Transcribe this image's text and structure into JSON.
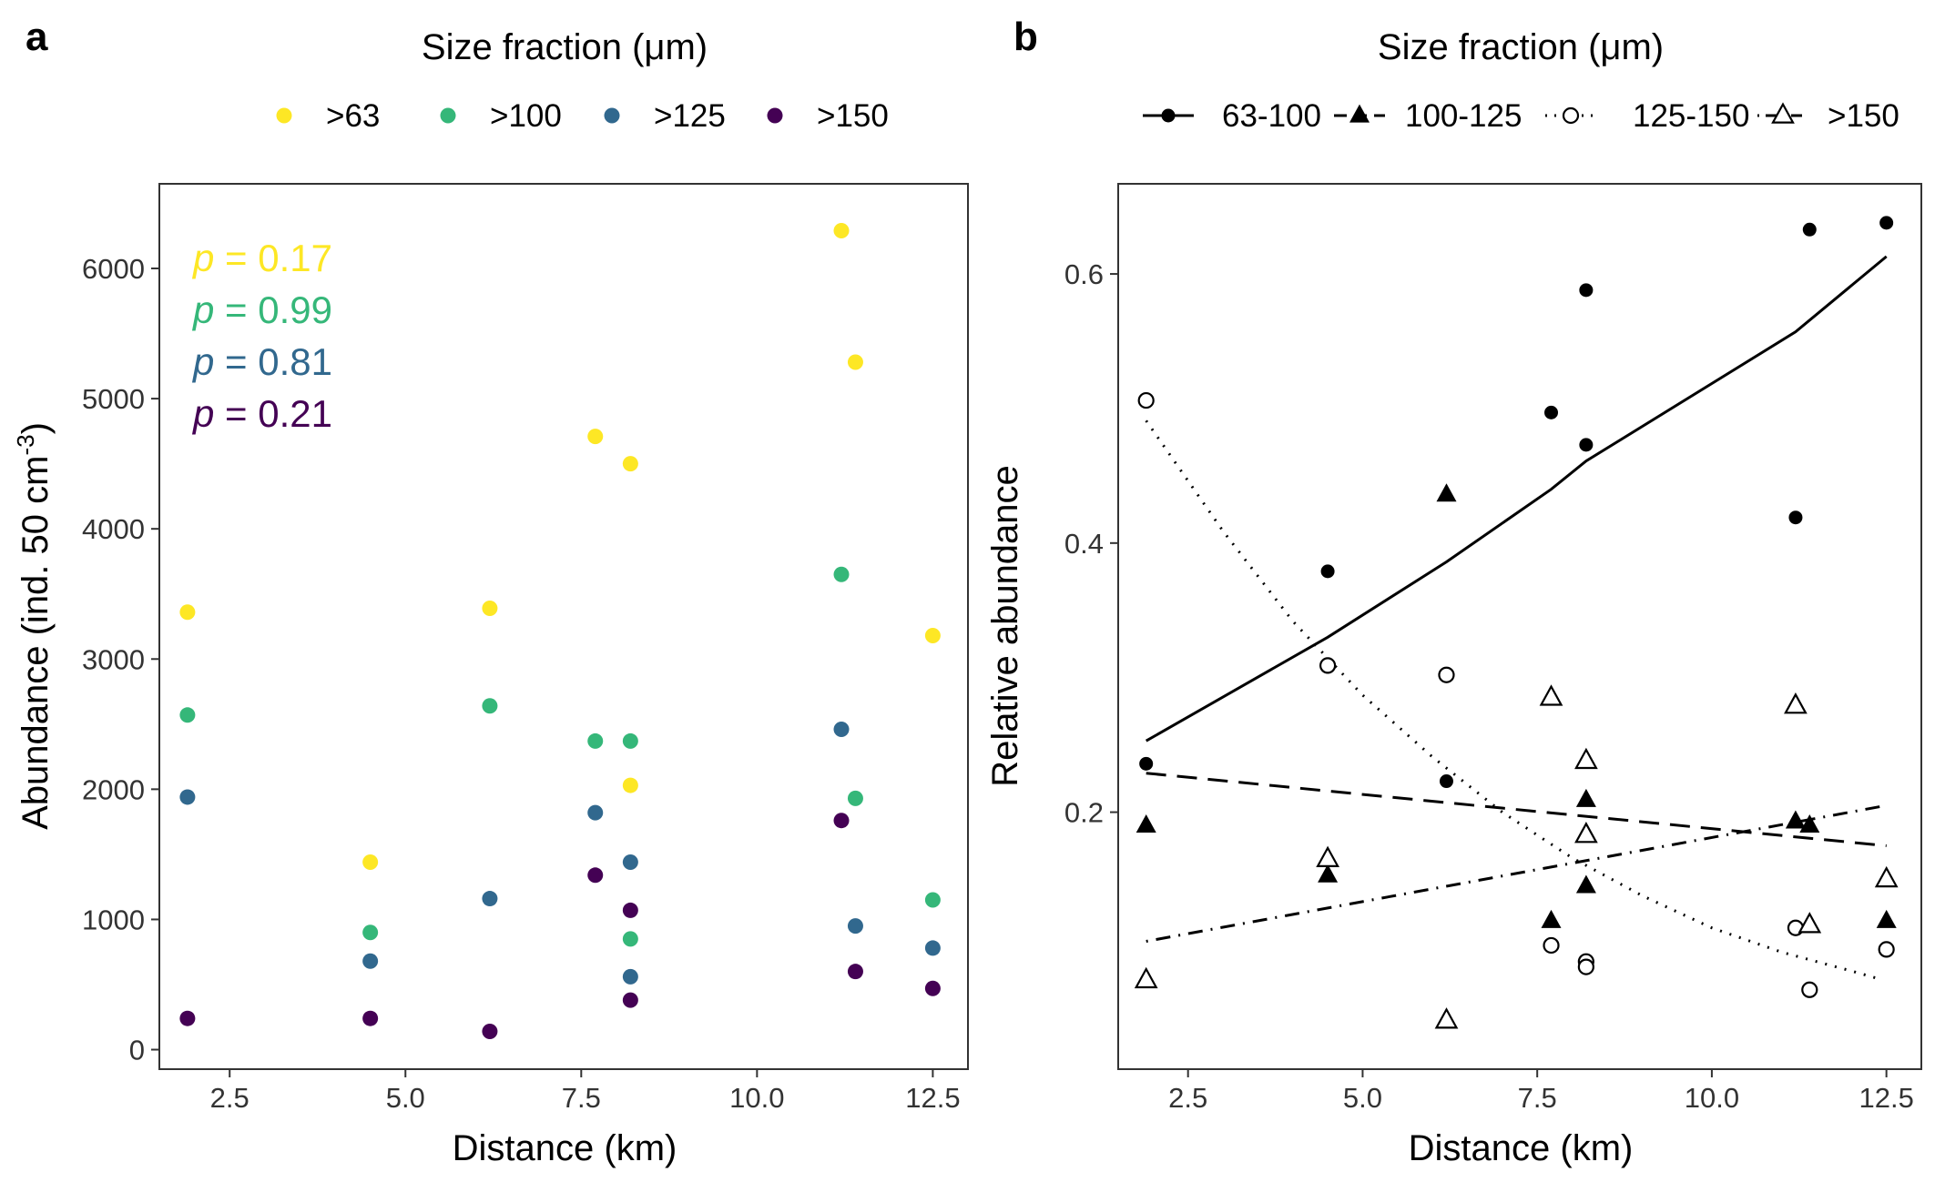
{
  "panels": {
    "a": {
      "tag": "a",
      "legend_title": "Size fraction (μm)"
    },
    "b": {
      "tag": "b",
      "legend_title": "Size fraction (μm)"
    }
  },
  "chart_data": [
    {
      "id": "a",
      "type": "scatter",
      "xlabel": "Distance (km)",
      "ylabel": "Abundance (ind. 50 cm",
      "ylabel_sup": "-3",
      "ylabel_end": ")",
      "xlim": [
        1.5,
        13.0
      ],
      "ylim": [
        -150,
        6650
      ],
      "xticks": [
        2.5,
        5.0,
        7.5,
        10.0,
        12.5
      ],
      "xtick_labels": [
        "2.5",
        "5.0",
        "7.5",
        "10.0",
        "12.5"
      ],
      "yticks": [
        0,
        1000,
        2000,
        3000,
        4000,
        5000,
        6000
      ],
      "ytick_labels": [
        "0",
        "1000",
        "2000",
        "3000",
        "4000",
        "5000",
        "6000"
      ],
      "legend_position": "top",
      "series": [
        {
          "name": ">63",
          "color": "#FDE725",
          "x": [
            1.9,
            4.5,
            6.2,
            7.7,
            8.2,
            8.2,
            11.2,
            11.4,
            12.5
          ],
          "y": [
            3360,
            1440,
            3390,
            4710,
            4500,
            2030,
            6290,
            5280,
            3180
          ]
        },
        {
          "name": ">100",
          "color": "#35B779",
          "x": [
            1.9,
            4.5,
            6.2,
            7.7,
            8.2,
            8.2,
            11.2,
            11.4,
            12.5
          ],
          "y": [
            2570,
            900,
            2640,
            2370,
            2370,
            850,
            3650,
            1930,
            1150
          ]
        },
        {
          "name": ">125",
          "color": "#31688E",
          "x": [
            1.9,
            4.5,
            6.2,
            7.7,
            8.2,
            8.2,
            11.2,
            11.4,
            12.5
          ],
          "y": [
            1940,
            680,
            1160,
            1820,
            1440,
            560,
            2460,
            950,
            780
          ]
        },
        {
          "name": ">150",
          "color": "#440154",
          "x": [
            1.9,
            4.5,
            6.2,
            7.7,
            8.2,
            8.2,
            11.2,
            11.4,
            12.5
          ],
          "y": [
            240,
            240,
            140,
            1340,
            1070,
            380,
            1760,
            600,
            470
          ]
        }
      ],
      "annotations": [
        {
          "prefix": "p",
          "text": " = 0.17",
          "color": "#FDE725"
        },
        {
          "prefix": "p",
          "text": " = 0.99",
          "color": "#35B779"
        },
        {
          "prefix": "p",
          "text": " = 0.81",
          "color": "#31688E"
        },
        {
          "prefix": "p",
          "text": " = 0.21",
          "color": "#440154"
        }
      ]
    },
    {
      "id": "b",
      "type": "scatter",
      "xlabel": "Distance (km)",
      "ylabel": "Relative abundance",
      "xlim": [
        1.5,
        13.0
      ],
      "ylim": [
        0.009,
        0.667
      ],
      "xticks": [
        2.5,
        5.0,
        7.5,
        10.0,
        12.5
      ],
      "xtick_labels": [
        "2.5",
        "5.0",
        "7.5",
        "10.0",
        "12.5"
      ],
      "yticks": [
        0.2,
        0.4,
        0.6
      ],
      "ytick_labels": [
        "0.2",
        "0.4",
        "0.6"
      ],
      "legend_position": "top",
      "series": [
        {
          "name": "63-100",
          "shape": "circle-filled",
          "line": "solid",
          "x": [
            1.9,
            4.5,
            6.2,
            7.7,
            8.2,
            8.2,
            11.2,
            11.4,
            12.5
          ],
          "y": [
            0.236,
            0.379,
            0.223,
            0.497,
            0.588,
            0.473,
            0.419,
            0.633,
            0.638
          ],
          "fit": {
            "x": [
              1.9,
              4.5,
              6.2,
              7.7,
              8.2,
              11.2,
              12.5
            ],
            "y": [
              0.253,
              0.33,
              0.386,
              0.44,
              0.461,
              0.557,
              0.613
            ]
          }
        },
        {
          "name": "100-125",
          "shape": "triangle-filled",
          "line": "dashed",
          "x": [
            1.9,
            4.5,
            6.2,
            7.7,
            8.2,
            8.2,
            11.2,
            11.4,
            12.5
          ],
          "y": [
            0.19,
            0.153,
            0.436,
            0.119,
            0.209,
            0.145,
            0.193,
            0.19,
            0.119
          ],
          "fit": {
            "x": [
              1.9,
              12.5
            ],
            "y": [
              0.229,
              0.175
            ]
          }
        },
        {
          "name": "125-150",
          "shape": "circle-open",
          "line": "dotted",
          "x": [
            1.9,
            4.5,
            6.2,
            7.7,
            8.2,
            8.2,
            11.2,
            11.4,
            12.5
          ],
          "y": [
            0.506,
            0.309,
            0.302,
            0.101,
            0.089,
            0.085,
            0.114,
            0.068,
            0.098
          ],
          "fit": {
            "x": [
              1.9,
              3.0,
              4.0,
              5.0,
              6.0,
              7.0,
              8.0,
              9.0,
              10.0,
              11.0,
              12.0,
              12.4
            ],
            "y": [
              0.491,
              0.409,
              0.342,
              0.287,
              0.241,
              0.2,
              0.166,
              0.138,
              0.114,
              0.096,
              0.082,
              0.076
            ]
          }
        },
        {
          "name": ">150",
          "shape": "triangle-open",
          "line": "dotdash",
          "x": [
            1.9,
            4.5,
            6.2,
            7.7,
            8.2,
            8.2,
            11.2,
            11.4,
            12.5
          ],
          "y": [
            0.075,
            0.165,
            0.045,
            0.285,
            0.238,
            0.183,
            0.279,
            0.116,
            0.15
          ],
          "fit": {
            "x": [
              1.9,
              12.5
            ],
            "y": [
              0.104,
              0.205
            ]
          }
        }
      ]
    }
  ]
}
